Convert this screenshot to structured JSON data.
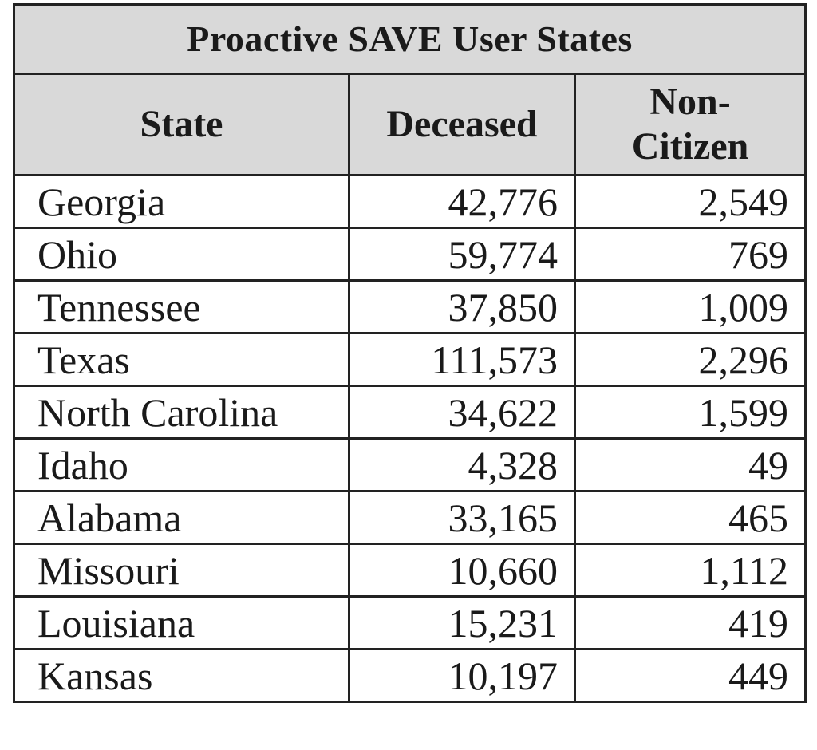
{
  "table": {
    "title": "Proactive SAVE User States",
    "headers": {
      "state": "State",
      "deceased": "Deceased",
      "noncitizen_line1": "Non-",
      "noncitizen_line2": "Citizen"
    },
    "rows": [
      {
        "state": "Georgia",
        "deceased": "42,776",
        "noncitizen": "2,549"
      },
      {
        "state": "Ohio",
        "deceased": "59,774",
        "noncitizen": "769"
      },
      {
        "state": "Tennessee",
        "deceased": "37,850",
        "noncitizen": "1,009"
      },
      {
        "state": "Texas",
        "deceased": "111,573",
        "noncitizen": "2,296"
      },
      {
        "state": "North Carolina",
        "deceased": "34,622",
        "noncitizen": "1,599"
      },
      {
        "state": "Idaho",
        "deceased": "4,328",
        "noncitizen": "49"
      },
      {
        "state": "Alabama",
        "deceased": "33,165",
        "noncitizen": "465"
      },
      {
        "state": "Missouri",
        "deceased": "10,660",
        "noncitizen": "1,112"
      },
      {
        "state": "Louisiana",
        "deceased": "15,231",
        "noncitizen": "419"
      },
      {
        "state": "Kansas",
        "deceased": "10,197",
        "noncitizen": "449"
      }
    ]
  }
}
